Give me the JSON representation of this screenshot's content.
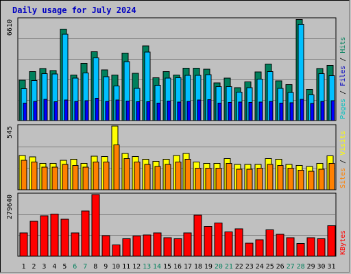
{
  "page": {
    "title": "Daily usage for July 2024"
  },
  "colors": {
    "hits": "#00805c",
    "files": "#00c0ff",
    "sites": "#ff8000",
    "visits": "#ffff00",
    "kbytes": "#ff0000",
    "grid": "#808080",
    "background": "#c0c0c0",
    "panel_bg": "#c0c0c0",
    "weekday_day": "#000000",
    "weekend_day": "#00805c",
    "separator": "#000000"
  },
  "chart_data": [
    {
      "type": "bar",
      "title": "Daily usage for July 2024",
      "ymax_label": "6610",
      "ylim": [
        0,
        6610
      ],
      "legend": [
        {
          "label": "Pages",
          "color": "#00c0c0"
        },
        {
          "label": "/",
          "color": "#000000"
        },
        {
          "label": "Files",
          "color": "#0000c0"
        },
        {
          "label": "/",
          "color": "#000000"
        },
        {
          "label": "Hits",
          "color": "#00805c"
        }
      ],
      "series": [
        {
          "name": "Hits",
          "values": [
            2640,
            3190,
            3400,
            3260,
            5970,
            2960,
            3730,
            4490,
            3310,
            2980,
            4410,
            3090,
            4860,
            2800,
            3200,
            2980,
            3420,
            3420,
            3340,
            2460,
            2760,
            2140,
            2520,
            3160,
            3680,
            2600,
            2340,
            6590,
            2030,
            3400,
            3600
          ]
        },
        {
          "name": "Files",
          "values": [
            2070,
            2620,
            3070,
            3040,
            5620,
            2760,
            3100,
            4090,
            2850,
            2250,
            3850,
            2100,
            4460,
            2300,
            2780,
            2790,
            2950,
            2950,
            3000,
            2220,
            2210,
            1860,
            2150,
            2700,
            3190,
            2090,
            1830,
            6280,
            1670,
            3070,
            2920
          ]
        },
        {
          "name": "Pages",
          "values": [
            1150,
            1250,
            1390,
            1230,
            1350,
            1250,
            1300,
            1450,
            1250,
            1350,
            1270,
            1230,
            1220,
            1140,
            1280,
            1200,
            1250,
            1330,
            1360,
            1150,
            1180,
            1200,
            1190,
            1200,
            1260,
            1130,
            1170,
            1380,
            1120,
            1250,
            1290
          ]
        }
      ]
    },
    {
      "type": "bar",
      "ymax_label": "545",
      "ylim": [
        0,
        545
      ],
      "legend": [
        {
          "label": "Sites",
          "color": "#ff8000"
        },
        {
          "label": "/",
          "color": "#000000"
        },
        {
          "label": "Visits",
          "color": "#ffff00"
        }
      ],
      "series": [
        {
          "name": "Visits",
          "values": [
            294,
            280,
            226,
            226,
            253,
            260,
            226,
            286,
            283,
            545,
            311,
            283,
            260,
            242,
            260,
            294,
            311,
            236,
            226,
            226,
            268,
            217,
            217,
            217,
            268,
            260,
            217,
            208,
            200,
            226,
            290
          ]
        },
        {
          "name": "Sites",
          "values": [
            253,
            236,
            192,
            192,
            217,
            208,
            192,
            236,
            236,
            385,
            268,
            236,
            217,
            200,
            217,
            236,
            260,
            184,
            184,
            184,
            226,
            175,
            175,
            184,
            217,
            208,
            184,
            166,
            158,
            175,
            226
          ]
        }
      ]
    },
    {
      "type": "bar",
      "ymax_label": "279640",
      "ylim": [
        0,
        279640
      ],
      "legend": [
        {
          "label": "KBytes",
          "color": "#ff0000"
        }
      ],
      "series": [
        {
          "name": "KBytes",
          "values": [
            106000,
            159000,
            184000,
            191000,
            168000,
            106000,
            205000,
            279640,
            93000,
            52000,
            79000,
            91000,
            97000,
            106000,
            84000,
            79000,
            106000,
            186000,
            135000,
            151000,
            110000,
            125000,
            59000,
            74000,
            119000,
            100000,
            84000,
            57000,
            84000,
            79000,
            139000
          ]
        }
      ]
    }
  ],
  "days": [
    "1",
    "2",
    "3",
    "4",
    "5",
    "6",
    "7",
    "8",
    "9",
    "10",
    "11",
    "12",
    "13",
    "14",
    "15",
    "16",
    "17",
    "18",
    "19",
    "20",
    "21",
    "22",
    "23",
    "24",
    "25",
    "26",
    "27",
    "28",
    "29",
    "30",
    "31"
  ],
  "weekend_days": [
    6,
    7,
    13,
    14,
    20,
    21,
    27,
    28
  ]
}
